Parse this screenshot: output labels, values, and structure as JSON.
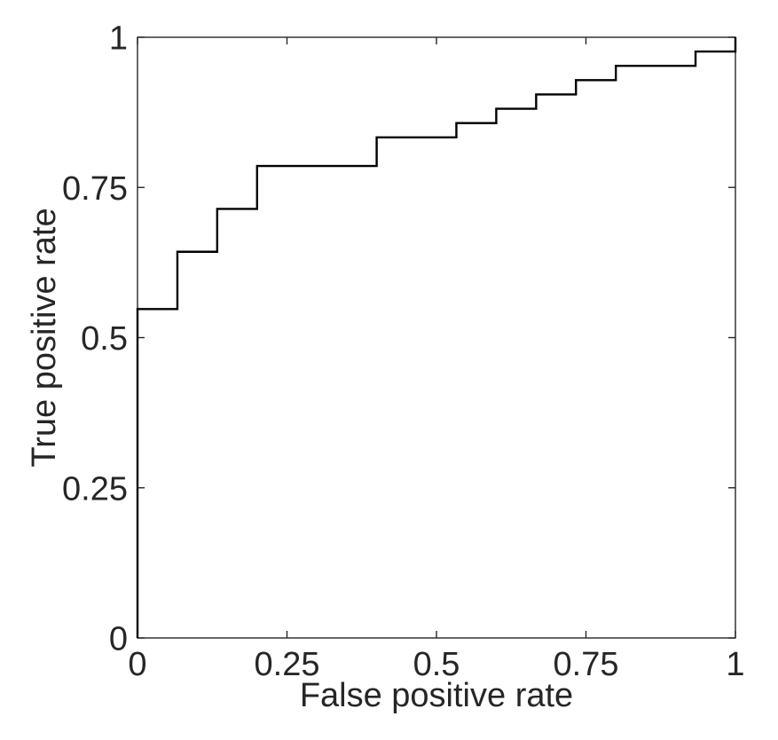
{
  "figure": {
    "background_color": "#ffffff",
    "axis_color": "#262626",
    "text_color": "#262626"
  },
  "chart_data": {
    "type": "line",
    "variant": "roc-staircase",
    "title": "",
    "xlabel": "False positive rate",
    "ylabel": "True positive rate",
    "xlim": [
      0,
      1
    ],
    "ylim": [
      0,
      1
    ],
    "grid": false,
    "legend": "none",
    "x_ticks": [
      {
        "value": 0,
        "label": "0"
      },
      {
        "value": 0.25,
        "label": "0.25"
      },
      {
        "value": 0.5,
        "label": "0.5"
      },
      {
        "value": 0.75,
        "label": "0.75"
      },
      {
        "value": 1,
        "label": "1"
      }
    ],
    "y_ticks": [
      {
        "value": 0,
        "label": "0"
      },
      {
        "value": 0.25,
        "label": "0.25"
      },
      {
        "value": 0.5,
        "label": "0.5"
      },
      {
        "value": 0.75,
        "label": "0.75"
      },
      {
        "value": 1,
        "label": "1"
      }
    ],
    "series": [
      {
        "name": "ROC curve",
        "color": "#000000",
        "step_mode": "horizontal-then-vertical",
        "points": [
          [
            0,
            0
          ],
          [
            0,
            0.5476
          ],
          [
            0.0667,
            0.6429
          ],
          [
            0.1333,
            0.7143
          ],
          [
            0.2,
            0.7857
          ],
          [
            0.4,
            0.8333
          ],
          [
            0.5333,
            0.8571
          ],
          [
            0.6,
            0.881
          ],
          [
            0.6667,
            0.9048
          ],
          [
            0.7333,
            0.9286
          ],
          [
            0.8,
            0.9524
          ],
          [
            0.9333,
            0.9762
          ],
          [
            1,
            1
          ]
        ]
      }
    ]
  }
}
